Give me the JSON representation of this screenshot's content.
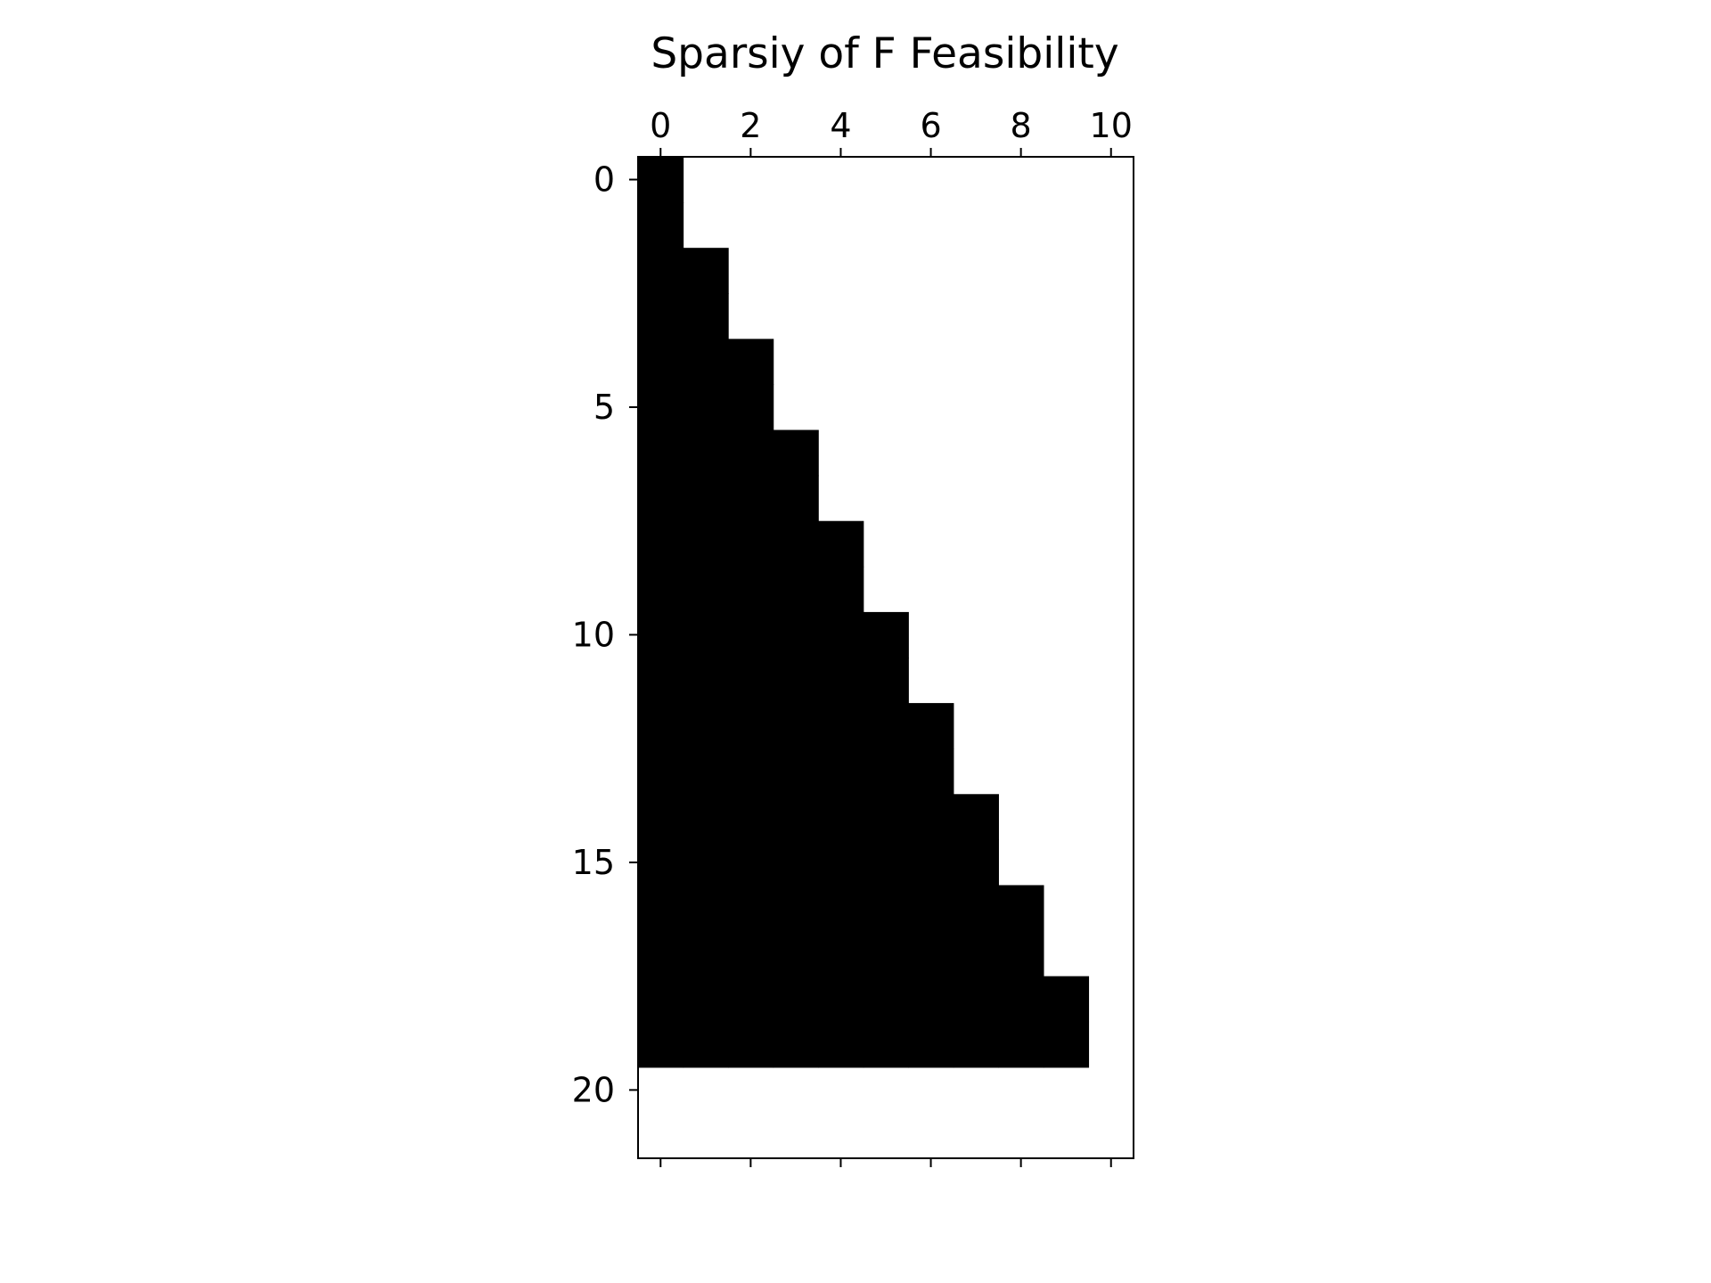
{
  "chart_data": {
    "type": "heatmap",
    "title": "Sparsiy of F Feasibility",
    "xlabel": "",
    "ylabel": "",
    "rows": 22,
    "cols": 11,
    "xlim": [
      -0.5,
      10.5
    ],
    "ylim": [
      21.5,
      -0.5
    ],
    "x_axis_position": "top",
    "x_ticks": [
      0,
      2,
      4,
      6,
      8,
      10
    ],
    "y_ticks": [
      0,
      5,
      10,
      15,
      20
    ],
    "grid": false,
    "filled_color": "#000000",
    "empty_color": "#ffffff",
    "row_fill": [
      {
        "rows": [
          0,
          1
        ],
        "cols": [
          0
        ]
      },
      {
        "rows": [
          2,
          3
        ],
        "cols": [
          0,
          1
        ]
      },
      {
        "rows": [
          4,
          5
        ],
        "cols": [
          0,
          1,
          2
        ]
      },
      {
        "rows": [
          6,
          7
        ],
        "cols": [
          0,
          1,
          2,
          3
        ]
      },
      {
        "rows": [
          8,
          9
        ],
        "cols": [
          0,
          1,
          2,
          3,
          4
        ]
      },
      {
        "rows": [
          10,
          11
        ],
        "cols": [
          0,
          1,
          2,
          3,
          4,
          5
        ]
      },
      {
        "rows": [
          12,
          13
        ],
        "cols": [
          0,
          1,
          2,
          3,
          4,
          5,
          6
        ]
      },
      {
        "rows": [
          14,
          15
        ],
        "cols": [
          0,
          1,
          2,
          3,
          4,
          5,
          6,
          7
        ]
      },
      {
        "rows": [
          16,
          17
        ],
        "cols": [
          0,
          1,
          2,
          3,
          4,
          5,
          6,
          7,
          8
        ]
      },
      {
        "rows": [
          18,
          19
        ],
        "cols": [
          0,
          1,
          2,
          3,
          4,
          5,
          6,
          7,
          8,
          9
        ]
      }
    ]
  }
}
